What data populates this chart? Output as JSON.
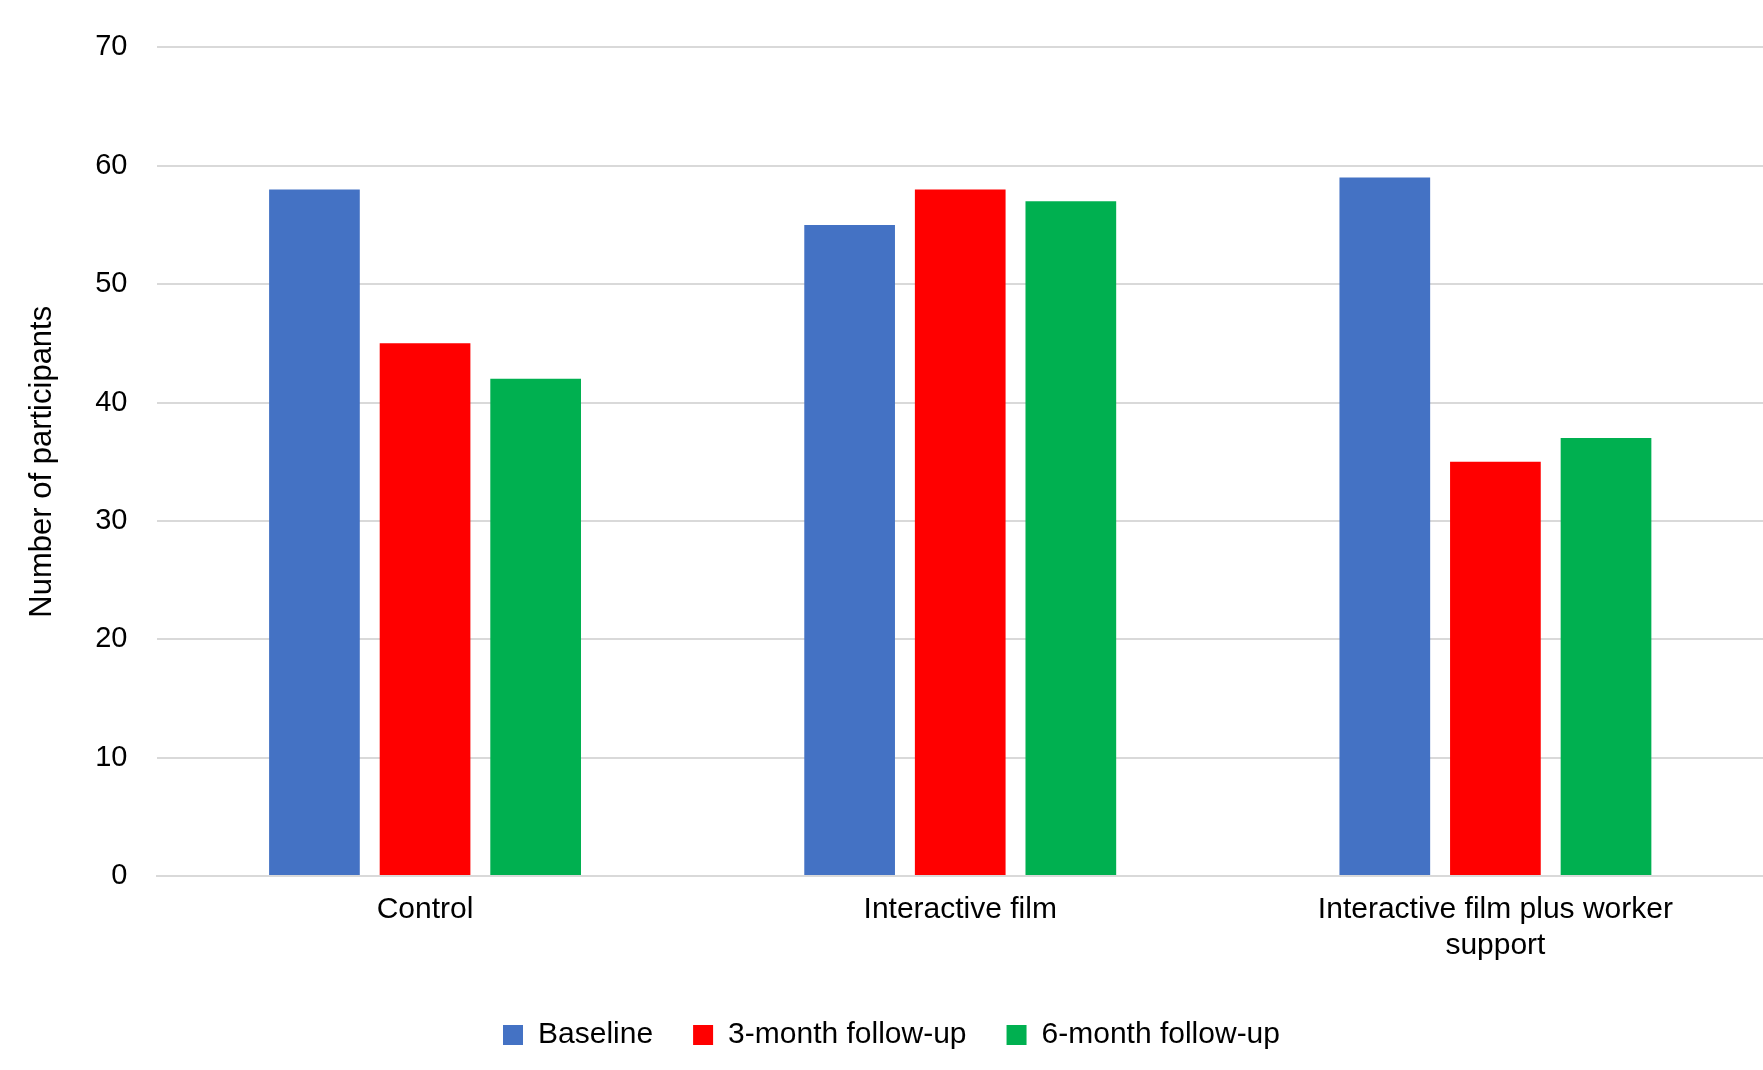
{
  "chart_data": {
    "type": "bar",
    "ylabel": "Number of participants",
    "categories": [
      "Control",
      "Interactive film",
      "Interactive film plus worker support"
    ],
    "series": [
      {
        "name": "Baseline",
        "color": "#4472c4",
        "values": [
          58,
          55,
          59
        ]
      },
      {
        "name": "3-month follow-up",
        "color": "#ff0000",
        "values": [
          45,
          58,
          35
        ]
      },
      {
        "name": "6-month follow-up",
        "color": "#00b050",
        "values": [
          42,
          57,
          37
        ]
      }
    ],
    "ylim": [
      0,
      70
    ],
    "yticks": [
      0,
      10,
      20,
      30,
      40,
      50,
      60,
      70
    ],
    "grid": "y",
    "legend": "bottom"
  }
}
